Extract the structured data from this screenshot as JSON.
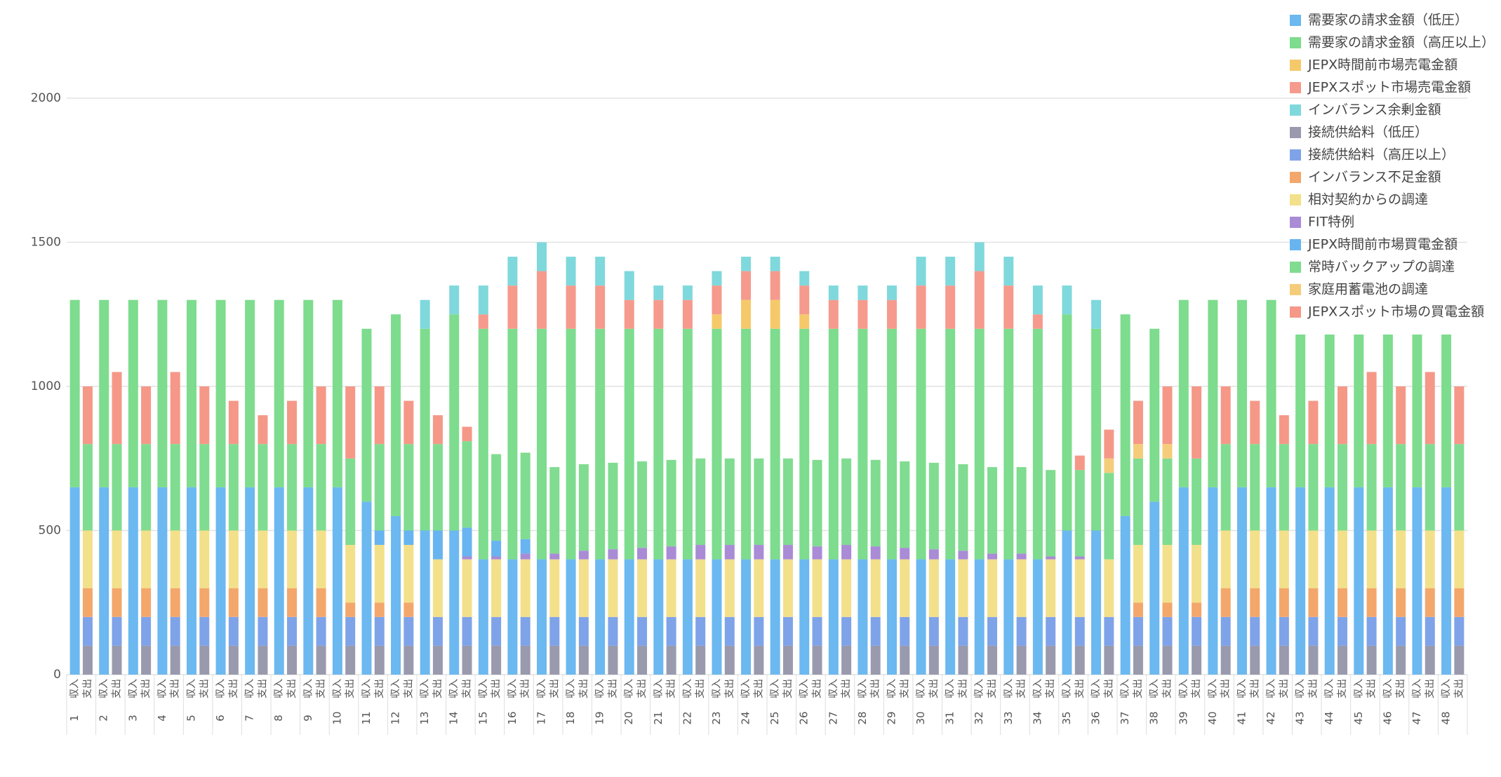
{
  "chart_data": {
    "type": "stacked-grouped-bar",
    "ylim": [
      0,
      2000
    ],
    "yticks": [
      0,
      500,
      1000,
      1500,
      2000
    ],
    "grid": true,
    "legend": "top-right",
    "categories": [
      "1",
      "2",
      "3",
      "4",
      "5",
      "6",
      "7",
      "8",
      "9",
      "10",
      "11",
      "12",
      "13",
      "14",
      "15",
      "16",
      "17",
      "18",
      "19",
      "20",
      "21",
      "22",
      "23",
      "24",
      "25",
      "26",
      "27",
      "28",
      "29",
      "30",
      "31",
      "32",
      "33",
      "34",
      "35",
      "36",
      "37",
      "38",
      "39",
      "40",
      "41",
      "42",
      "43",
      "44",
      "45",
      "46",
      "47",
      "48"
    ],
    "stacks": [
      {
        "label": "収入",
        "series": [
          {
            "name": "需要家の請求金額（低圧）",
            "color": "#6cb8f0",
            "values": [
              650,
              650,
              650,
              650,
              650,
              650,
              650,
              650,
              650,
              650,
              600,
              550,
              500,
              500,
              400,
              400,
              400,
              400,
              400,
              400,
              400,
              400,
              400,
              400,
              400,
              400,
              400,
              400,
              400,
              400,
              400,
              400,
              400,
              400,
              500,
              500,
              550,
              600,
              650,
              650,
              650,
              650,
              650,
              650,
              650,
              650,
              650,
              650
            ]
          },
          {
            "name": "需要家の請求金額（高圧以上）",
            "color": "#7ddc8e",
            "values": [
              650,
              650,
              650,
              650,
              650,
              650,
              650,
              650,
              650,
              650,
              600,
              700,
              700,
              750,
              800,
              800,
              800,
              800,
              800,
              800,
              800,
              800,
              800,
              800,
              800,
              800,
              800,
              800,
              800,
              800,
              800,
              800,
              800,
              800,
              750,
              700,
              700,
              600,
              650,
              650,
              650,
              650,
              530,
              530,
              530,
              530,
              530,
              530
            ]
          },
          {
            "name": "JEPX時間前市場売電金額",
            "color": "#f5c96a",
            "values": [
              0,
              0,
              0,
              0,
              0,
              0,
              0,
              0,
              0,
              0,
              0,
              0,
              0,
              0,
              0,
              0,
              0,
              0,
              0,
              0,
              0,
              0,
              50,
              100,
              100,
              50,
              0,
              0,
              0,
              0,
              0,
              0,
              0,
              0,
              0,
              0,
              0,
              0,
              0,
              0,
              0,
              0,
              0,
              0,
              0,
              0,
              0,
              0
            ]
          },
          {
            "name": "JEPXスポット市場売電金額",
            "color": "#f59a8c",
            "values": [
              0,
              0,
              0,
              0,
              0,
              0,
              0,
              0,
              0,
              0,
              0,
              0,
              0,
              0,
              50,
              150,
              200,
              150,
              150,
              100,
              100,
              100,
              100,
              100,
              100,
              100,
              100,
              100,
              100,
              150,
              150,
              200,
              150,
              50,
              0,
              0,
              0,
              0,
              0,
              0,
              0,
              0,
              0,
              0,
              0,
              0,
              0,
              0
            ]
          },
          {
            "name": "インバランス余剰金額",
            "color": "#7fd8dc",
            "values": [
              0,
              0,
              0,
              0,
              0,
              0,
              0,
              0,
              0,
              0,
              0,
              0,
              100,
              100,
              100,
              100,
              100,
              100,
              100,
              100,
              50,
              50,
              50,
              50,
              50,
              50,
              50,
              50,
              50,
              100,
              100,
              100,
              100,
              100,
              100,
              100,
              0,
              0,
              0,
              0,
              0,
              0,
              0,
              0,
              0,
              0,
              0,
              0
            ]
          }
        ]
      },
      {
        "label": "支出",
        "series": [
          {
            "name": "接続供給料（低圧）",
            "color": "#9a9aae",
            "values": [
              100,
              100,
              100,
              100,
              100,
              100,
              100,
              100,
              100,
              100,
              100,
              100,
              100,
              100,
              100,
              100,
              100,
              100,
              100,
              100,
              100,
              100,
              100,
              100,
              100,
              100,
              100,
              100,
              100,
              100,
              100,
              100,
              100,
              100,
              100,
              100,
              100,
              100,
              100,
              100,
              100,
              100,
              100,
              100,
              100,
              100,
              100,
              100
            ]
          },
          {
            "name": "接続供給料（高圧以上）",
            "color": "#7fa3e8",
            "values": [
              100,
              100,
              100,
              100,
              100,
              100,
              100,
              100,
              100,
              100,
              100,
              100,
              100,
              100,
              100,
              100,
              100,
              100,
              100,
              100,
              100,
              100,
              100,
              100,
              100,
              100,
              100,
              100,
              100,
              100,
              100,
              100,
              100,
              100,
              100,
              100,
              100,
              100,
              100,
              100,
              100,
              100,
              100,
              100,
              100,
              100,
              100,
              100
            ]
          },
          {
            "name": "インバランス不足金額",
            "color": "#f3a76b",
            "values": [
              100,
              100,
              100,
              100,
              100,
              100,
              100,
              100,
              100,
              50,
              50,
              50,
              0,
              0,
              0,
              0,
              0,
              0,
              0,
              0,
              0,
              0,
              0,
              0,
              0,
              0,
              0,
              0,
              0,
              0,
              0,
              0,
              0,
              0,
              0,
              0,
              50,
              50,
              50,
              100,
              100,
              100,
              100,
              100,
              100,
              100,
              100,
              100
            ]
          },
          {
            "name": "相対契約からの調達",
            "color": "#f3e08a",
            "values": [
              200,
              200,
              200,
              200,
              200,
              200,
              200,
              200,
              200,
              200,
              200,
              200,
              200,
              200,
              200,
              200,
              200,
              200,
              200,
              200,
              200,
              200,
              200,
              200,
              200,
              200,
              200,
              200,
              200,
              200,
              200,
              200,
              200,
              200,
              200,
              200,
              200,
              200,
              200,
              200,
              200,
              200,
              200,
              200,
              200,
              200,
              200,
              200
            ]
          },
          {
            "name": "FIT特例",
            "color": "#a98bd6",
            "values": [
              0,
              0,
              0,
              0,
              0,
              0,
              0,
              0,
              0,
              0,
              0,
              0,
              0,
              10,
              10,
              20,
              20,
              30,
              35,
              40,
              45,
              50,
              50,
              50,
              50,
              45,
              50,
              45,
              40,
              35,
              30,
              20,
              20,
              10,
              10,
              0,
              0,
              0,
              0,
              0,
              0,
              0,
              0,
              0,
              0,
              0,
              0,
              0
            ]
          },
          {
            "name": "JEPX時間前市場買電金額",
            "color": "#68b4f0",
            "values": [
              0,
              0,
              0,
              0,
              0,
              0,
              0,
              0,
              0,
              0,
              50,
              50,
              100,
              100,
              55,
              50,
              0,
              0,
              0,
              0,
              0,
              0,
              0,
              0,
              0,
              0,
              0,
              0,
              0,
              0,
              0,
              0,
              0,
              0,
              0,
              0,
              0,
              0,
              0,
              0,
              0,
              0,
              0,
              0,
              0,
              0,
              0,
              0
            ]
          },
          {
            "name": "常時バックアップの調達",
            "color": "#80dc90",
            "values": [
              300,
              300,
              300,
              300,
              300,
              300,
              300,
              300,
              300,
              300,
              300,
              300,
              300,
              300,
              300,
              300,
              300,
              300,
              300,
              300,
              300,
              300,
              300,
              300,
              300,
              300,
              300,
              300,
              300,
              300,
              300,
              300,
              300,
              300,
              300,
              300,
              300,
              300,
              300,
              300,
              300,
              300,
              300,
              300,
              300,
              300,
              300,
              300
            ]
          },
          {
            "name": "家庭用蓄電池の調達",
            "color": "#f5cd7a",
            "values": [
              0,
              0,
              0,
              0,
              0,
              0,
              0,
              0,
              0,
              0,
              0,
              0,
              0,
              0,
              0,
              0,
              0,
              0,
              0,
              0,
              0,
              0,
              0,
              0,
              0,
              0,
              0,
              0,
              0,
              0,
              0,
              0,
              0,
              0,
              0,
              50,
              50,
              50,
              0,
              0,
              0,
              0,
              0,
              0,
              0,
              0,
              0,
              0
            ]
          },
          {
            "name": "JEPXスポット市場の買電金額",
            "color": "#f59888",
            "values": [
              200,
              250,
              200,
              250,
              200,
              150,
              100,
              150,
              200,
              250,
              200,
              150,
              100,
              50,
              0,
              0,
              0,
              0,
              0,
              0,
              0,
              0,
              0,
              0,
              0,
              0,
              0,
              0,
              0,
              0,
              0,
              0,
              0,
              0,
              50,
              100,
              150,
              200,
              250,
              200,
              150,
              100,
              150,
              200,
              250,
              200,
              250,
              200
            ]
          }
        ]
      }
    ]
  }
}
